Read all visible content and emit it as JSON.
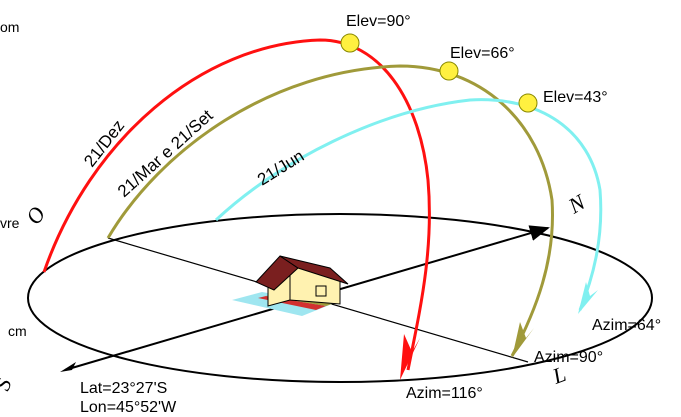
{
  "elevations": {
    "dec": "Elev=90°",
    "equinox": "Elev=66°",
    "jun": "Elev=43°"
  },
  "azimuths": {
    "dec": "Azim=116°",
    "equinox": "Azim=90°",
    "jun": "Azim=64°"
  },
  "arc_labels": {
    "dec": "21/Dez",
    "equinox": "21/Mar e 21/Set",
    "jun": "21/Jun"
  },
  "cardinals": {
    "north": "N",
    "south": "S",
    "east": "L",
    "west": "O"
  },
  "location": {
    "lat": "Lat=23°27'S",
    "lon": "Lon=45°52'W"
  },
  "clipped": {
    "top_left": "om",
    "mid_left": "vre",
    "low_left": "cm"
  },
  "colors": {
    "dec_path": "#ff1010",
    "equinox_path": "#a09a3a",
    "jun_path": "#80f0f0",
    "sun": "#fff040",
    "roof": "#7a1f1f",
    "walls": "#fff2b0"
  }
}
